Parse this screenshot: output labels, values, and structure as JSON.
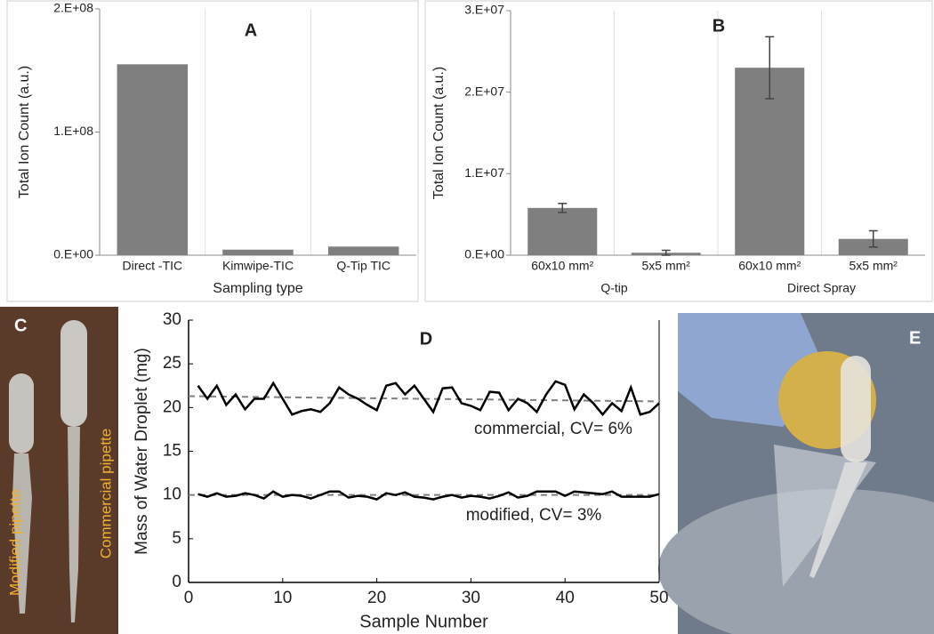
{
  "chart_data": [
    {
      "type": "bar",
      "title": "A",
      "ylabel": "Total Ion Count (a.u.)",
      "xlabel": "Sampling type",
      "categories": [
        "Direct -TIC",
        "Kimwipe-TIC",
        "Q-Tip TIC"
      ],
      "values": [
        155000000,
        4500000,
        7000000
      ],
      "color": "#7f7f7f",
      "ylim": [
        0,
        200000000
      ],
      "yticks": [
        {
          "value": 0,
          "label": "0.E+00"
        },
        {
          "value": 100000000,
          "label": "1.E+08"
        },
        {
          "value": 200000000,
          "label": "2.E+08"
        }
      ]
    },
    {
      "type": "bar",
      "title": "B",
      "ylabel": "Total Ion Count (a.u.)",
      "categories": [
        "60x10 mm²",
        "5x5 mm²",
        "60x10 mm²",
        "5x5 mm²"
      ],
      "group_labels": [
        "Q-tip",
        "Direct Spray"
      ],
      "values": [
        5800000,
        300000,
        23000000,
        2000000
      ],
      "errors": [
        550000,
        300000,
        3800000,
        1000000
      ],
      "color": "#7f7f7f",
      "ylim": [
        0,
        30000000
      ],
      "yticks": [
        {
          "value": 0,
          "label": "0.E+00"
        },
        {
          "value": 10000000,
          "label": "1.E+07"
        },
        {
          "value": 20000000,
          "label": "2.E+07"
        },
        {
          "value": 30000000,
          "label": "3.E+07"
        }
      ]
    },
    {
      "type": "line",
      "title": "D",
      "ylabel": "Mass of Water Droplet (mg)",
      "xlabel": "Sample Number",
      "x": [
        1,
        2,
        3,
        4,
        5,
        6,
        7,
        8,
        9,
        10,
        11,
        12,
        13,
        14,
        15,
        16,
        17,
        18,
        19,
        20,
        21,
        22,
        23,
        24,
        25,
        26,
        27,
        28,
        29,
        30,
        31,
        32,
        33,
        34,
        35,
        36,
        37,
        38,
        39,
        40,
        41,
        42,
        43,
        44,
        45,
        46,
        47,
        48,
        49,
        50
      ],
      "series": [
        {
          "color": "#000000",
          "trend": [
            21.3,
            20.7
          ],
          "values": [
            22.5,
            21,
            22.5,
            20.3,
            21.5,
            19.8,
            21,
            21,
            22.8,
            21,
            19.2,
            19.6,
            19.8,
            19.5,
            20.5,
            22.3,
            21.5,
            21,
            20.3,
            19.7,
            22.5,
            22.8,
            21.5,
            22.5,
            21,
            19.5,
            22.2,
            22.3,
            20.5,
            20.2,
            19.7,
            21.8,
            21.7,
            19.7,
            21,
            20.5,
            19.5,
            21.5,
            23,
            22.6,
            19.8,
            21.5,
            20.5,
            19.2,
            20.5,
            19.6,
            22.3,
            19.2,
            19.5,
            20.5
          ]
        },
        {
          "color": "#000000",
          "trend": [
            10,
            10
          ],
          "values": [
            10.1,
            9.8,
            10.2,
            9.8,
            9.9,
            10.2,
            10,
            9.6,
            10.4,
            9.8,
            10,
            9.9,
            9.6,
            10,
            10.4,
            10.4,
            9.7,
            9.9,
            9.8,
            9.5,
            10.2,
            10,
            10.3,
            9.8,
            9.7,
            9.5,
            9.8,
            10,
            9.7,
            9.9,
            9.8,
            9.6,
            9.9,
            10.3,
            9.7,
            9.9,
            10.4,
            10.4,
            10.4,
            9.9,
            10.4,
            10.3,
            10.2,
            10.1,
            10.4,
            9.8,
            9.8,
            9.8,
            9.8,
            10.1
          ]
        }
      ],
      "annotations": [
        "commercial, CV= 6%",
        "modified, CV= 3%"
      ],
      "trend_color": "#808080",
      "xlim": [
        0,
        50
      ],
      "xticks": [
        0,
        10,
        20,
        30,
        40,
        50
      ],
      "ylim": [
        0,
        30
      ],
      "yticks": [
        0,
        5,
        10,
        15,
        20,
        25,
        30
      ]
    }
  ],
  "photo_panels": [
    {
      "label": "C",
      "annotations": [
        "Modified pipette",
        "Commercial pipette"
      ]
    },
    {
      "label": "E"
    }
  ]
}
